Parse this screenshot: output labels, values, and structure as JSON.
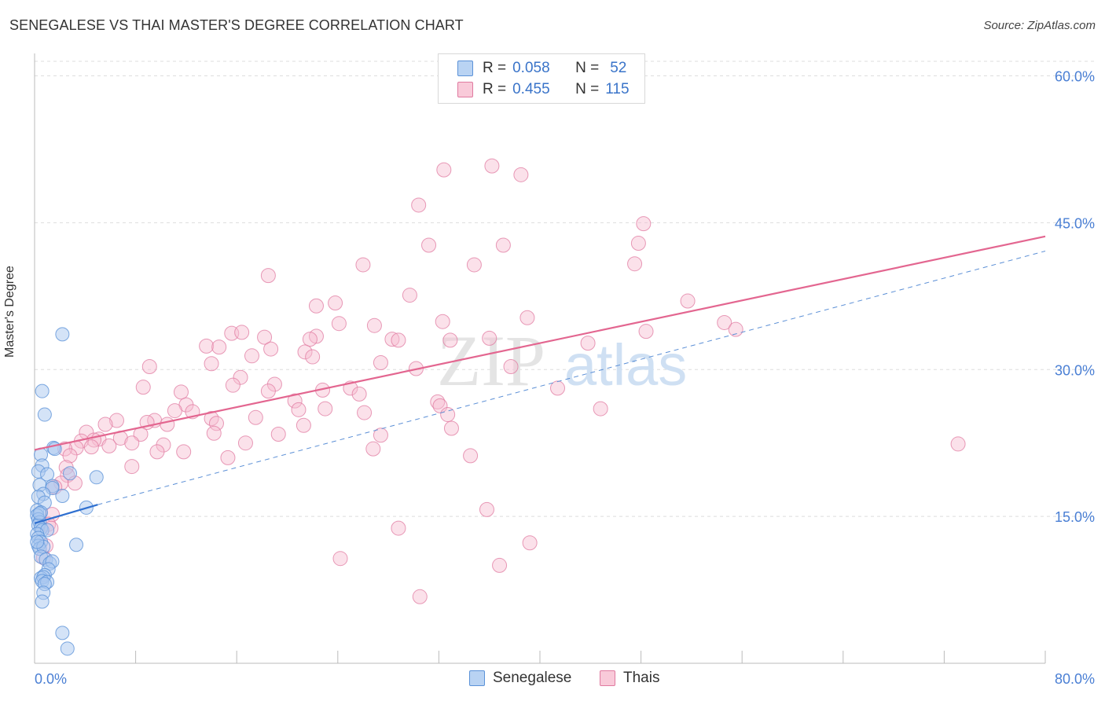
{
  "title": "SENEGALESE VS THAI MASTER'S DEGREE CORRELATION CHART",
  "source": "Source: ZipAtlas.com",
  "watermark": {
    "zip": "ZIP",
    "atlas": "atlas"
  },
  "legend": {
    "rows": [
      {
        "r_label": "R =",
        "r_value": "0.058",
        "n_label": "N =",
        "n_value": "52"
      },
      {
        "r_label": "R =",
        "r_value": "0.455",
        "n_label": "N =",
        "n_value": "115"
      }
    ],
    "bottom": [
      {
        "name": "Senegalese"
      },
      {
        "name": "Thais"
      }
    ]
  },
  "colors": {
    "senegalese_fill": "#a9c8f0",
    "senegalese_stroke": "#5b92d8",
    "senegalese_line": "#2e6fd0",
    "thai_fill": "#f6bcd0",
    "thai_stroke": "#e07aa0",
    "thai_line": "#e36690",
    "dashed_line": "#5b8fd6",
    "tick_label": "#4a7fd4",
    "grid": "#dddddd"
  },
  "chart_data": {
    "type": "scatter",
    "xlabel": "",
    "ylabel": "Master's Degree",
    "xlim": [
      0,
      80
    ],
    "ylim": [
      0,
      62
    ],
    "x_tick_labels": [
      {
        "value": 0,
        "label": "0.0%"
      },
      {
        "value": 80,
        "label": "80.0%"
      }
    ],
    "y_tick_labels": [
      {
        "value": 15,
        "label": "15.0%"
      },
      {
        "value": 30,
        "label": "30.0%"
      },
      {
        "value": 45,
        "label": "45.0%"
      },
      {
        "value": 60,
        "label": "60.0%"
      }
    ],
    "series": [
      {
        "name": "Senegalese",
        "R": 0.058,
        "N": 52,
        "trend": {
          "x": [
            0,
            5
          ],
          "y": [
            14.3,
            16.2
          ]
        },
        "points": [
          [
            2.2,
            33.6
          ],
          [
            0.6,
            27.8
          ],
          [
            0.8,
            25.4
          ],
          [
            1.5,
            22.0
          ],
          [
            1.6,
            21.9
          ],
          [
            0.5,
            21.3
          ],
          [
            0.6,
            20.2
          ],
          [
            0.3,
            19.6
          ],
          [
            1.0,
            19.3
          ],
          [
            2.8,
            19.4
          ],
          [
            4.9,
            19.0
          ],
          [
            0.4,
            18.2
          ],
          [
            1.4,
            18.1
          ],
          [
            1.4,
            17.9
          ],
          [
            0.7,
            17.3
          ],
          [
            2.2,
            17.1
          ],
          [
            0.3,
            17.0
          ],
          [
            0.8,
            16.4
          ],
          [
            4.1,
            15.9
          ],
          [
            0.2,
            15.6
          ],
          [
            0.5,
            15.4
          ],
          [
            0.2,
            15.1
          ],
          [
            0.3,
            14.7
          ],
          [
            0.4,
            14.4
          ],
          [
            0.3,
            14.1
          ],
          [
            0.5,
            13.8
          ],
          [
            0.6,
            13.6
          ],
          [
            1.0,
            13.6
          ],
          [
            0.2,
            13.2
          ],
          [
            0.3,
            12.8
          ],
          [
            0.5,
            12.4
          ],
          [
            0.3,
            12.0
          ],
          [
            0.4,
            11.7
          ],
          [
            0.7,
            11.9
          ],
          [
            3.3,
            12.1
          ],
          [
            0.5,
            10.9
          ],
          [
            0.9,
            10.6
          ],
          [
            1.2,
            10.2
          ],
          [
            1.4,
            10.4
          ],
          [
            1.1,
            9.6
          ],
          [
            0.8,
            9.0
          ],
          [
            0.5,
            8.7
          ],
          [
            0.7,
            8.8
          ],
          [
            0.6,
            8.4
          ],
          [
            1.0,
            8.3
          ],
          [
            0.8,
            8.1
          ],
          [
            0.7,
            7.2
          ],
          [
            0.6,
            6.3
          ],
          [
            2.2,
            3.1
          ],
          [
            2.6,
            1.5
          ],
          [
            0.2,
            12.4
          ],
          [
            0.4,
            15.3
          ]
        ]
      },
      {
        "name": "Thais",
        "R": 0.455,
        "N": 115,
        "trend": {
          "x": [
            0,
            80
          ],
          "y": [
            21.8,
            43.6
          ]
        },
        "points": [
          [
            36.2,
            50.8
          ],
          [
            32.4,
            50.4
          ],
          [
            38.5,
            49.9
          ],
          [
            30.4,
            46.8
          ],
          [
            48.2,
            44.9
          ],
          [
            31.2,
            42.7
          ],
          [
            37.1,
            42.7
          ],
          [
            47.8,
            42.9
          ],
          [
            26.0,
            40.7
          ],
          [
            34.8,
            40.7
          ],
          [
            47.5,
            40.8
          ],
          [
            18.5,
            39.6
          ],
          [
            29.7,
            37.6
          ],
          [
            51.7,
            37.0
          ],
          [
            23.8,
            36.8
          ],
          [
            22.3,
            36.5
          ],
          [
            39.0,
            35.3
          ],
          [
            24.1,
            34.7
          ],
          [
            26.9,
            34.5
          ],
          [
            32.3,
            34.9
          ],
          [
            54.6,
            34.8
          ],
          [
            55.5,
            34.1
          ],
          [
            18.2,
            33.3
          ],
          [
            15.6,
            33.7
          ],
          [
            16.4,
            33.8
          ],
          [
            22.3,
            33.4
          ],
          [
            21.8,
            33.1
          ],
          [
            28.3,
            33.1
          ],
          [
            28.8,
            33.0
          ],
          [
            48.4,
            33.9
          ],
          [
            32.9,
            33.0
          ],
          [
            36.0,
            33.2
          ],
          [
            13.6,
            32.4
          ],
          [
            14.6,
            32.3
          ],
          [
            18.7,
            32.1
          ],
          [
            21.4,
            31.8
          ],
          [
            22.0,
            31.3
          ],
          [
            17.2,
            31.4
          ],
          [
            27.4,
            30.7
          ],
          [
            9.1,
            30.3
          ],
          [
            16.3,
            29.2
          ],
          [
            30.2,
            30.1
          ],
          [
            37.7,
            30.3
          ],
          [
            14.0,
            30.6
          ],
          [
            43.8,
            32.7
          ],
          [
            19.0,
            28.5
          ],
          [
            15.7,
            28.4
          ],
          [
            8.6,
            28.2
          ],
          [
            11.6,
            27.7
          ],
          [
            25.0,
            28.1
          ],
          [
            18.5,
            27.8
          ],
          [
            22.8,
            27.9
          ],
          [
            25.7,
            27.5
          ],
          [
            41.4,
            28.1
          ],
          [
            12.0,
            26.4
          ],
          [
            20.6,
            26.8
          ],
          [
            31.9,
            26.7
          ],
          [
            11.1,
            25.8
          ],
          [
            12.5,
            25.7
          ],
          [
            20.9,
            25.9
          ],
          [
            23.0,
            26.0
          ],
          [
            32.1,
            26.3
          ],
          [
            44.8,
            26.0
          ],
          [
            26.1,
            25.6
          ],
          [
            32.7,
            25.4
          ],
          [
            14.0,
            25.0
          ],
          [
            17.5,
            25.1
          ],
          [
            9.5,
            24.8
          ],
          [
            6.5,
            24.8
          ],
          [
            5.6,
            24.4
          ],
          [
            8.9,
            24.6
          ],
          [
            10.5,
            24.4
          ],
          [
            14.4,
            24.5
          ],
          [
            21.3,
            24.3
          ],
          [
            33.0,
            24.0
          ],
          [
            14.2,
            23.5
          ],
          [
            19.3,
            23.4
          ],
          [
            8.4,
            23.4
          ],
          [
            27.4,
            23.3
          ],
          [
            4.1,
            23.6
          ],
          [
            6.8,
            23.0
          ],
          [
            5.1,
            22.9
          ],
          [
            4.7,
            22.8
          ],
          [
            3.7,
            22.7
          ],
          [
            7.7,
            22.5
          ],
          [
            10.2,
            22.3
          ],
          [
            16.7,
            22.5
          ],
          [
            5.9,
            22.2
          ],
          [
            4.5,
            22.1
          ],
          [
            3.3,
            22.0
          ],
          [
            2.4,
            21.9
          ],
          [
            26.8,
            21.9
          ],
          [
            73.1,
            22.4
          ],
          [
            11.8,
            21.6
          ],
          [
            9.7,
            21.6
          ],
          [
            2.8,
            21.2
          ],
          [
            15.3,
            21.0
          ],
          [
            34.5,
            21.2
          ],
          [
            7.7,
            20.1
          ],
          [
            2.5,
            20.0
          ],
          [
            2.6,
            19.2
          ],
          [
            3.2,
            18.4
          ],
          [
            2.1,
            18.4
          ],
          [
            1.6,
            18.0
          ],
          [
            1.4,
            15.2
          ],
          [
            1.1,
            14.2
          ],
          [
            1.3,
            13.8
          ],
          [
            0.9,
            12.0
          ],
          [
            0.7,
            10.8
          ],
          [
            35.8,
            15.7
          ],
          [
            28.8,
            13.8
          ],
          [
            39.2,
            12.3
          ],
          [
            24.2,
            10.7
          ],
          [
            36.8,
            10.0
          ],
          [
            30.5,
            6.8
          ]
        ]
      }
    ]
  }
}
